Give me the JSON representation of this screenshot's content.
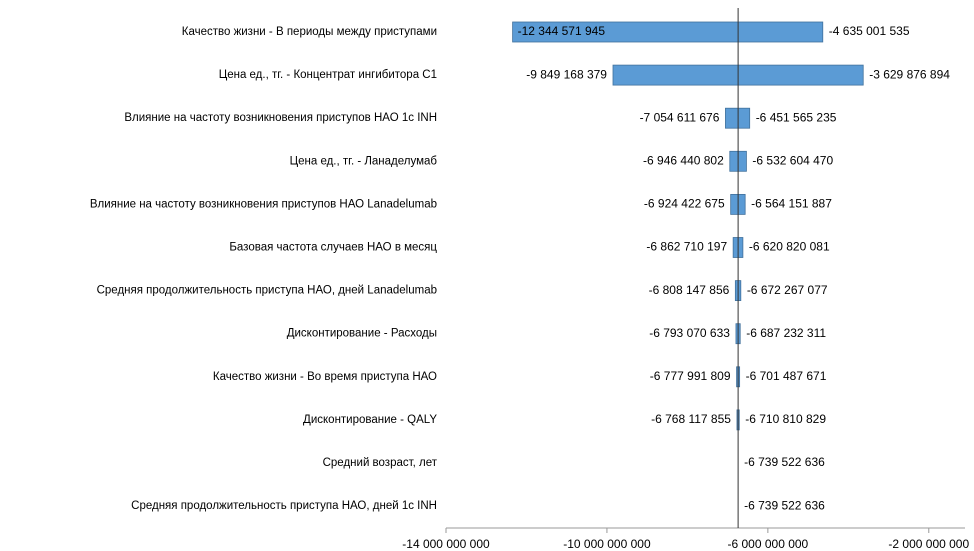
{
  "chart_data": {
    "type": "tornado",
    "categories": [
      "Качество жизни - В периоды между приступами",
      "Цена ед., тг. - Концентрат ингибитора С1",
      "Влияние на частоту возникновения приступов НАО 1с INH",
      "Цена ед., тг. - Ланаделумаб",
      "Влияние на частоту возникновения приступов НАО Lanadelumab",
      "Базовая частота случаев НАО в месяц",
      "Средняя продолжительность приступа НАО, дней Lanadelumab",
      "Дисконтирование - Расходы",
      "Качество жизни - Во время приступа НАО",
      "Дисконтирование - QALY",
      "Средний возраст, лет",
      "Средняя продолжительность приступа НАО, дней 1с INH"
    ],
    "series": [
      {
        "color": "#5b9bd5",
        "values": [
          -12344571945,
          -9849168379,
          -7054611676,
          -6946440802,
          -6924422675,
          -6862710197,
          -6808147856,
          -6793070633,
          -6777991809,
          -6768117855,
          null,
          null
        ],
        "value_labels": [
          "-12 344 571 945",
          "-9 849 168 379",
          "-7 054 611 676",
          "-6 946 440 802",
          "-6 924 422 675",
          "-6 862 710 197",
          "-6 808 147 856",
          "-6 793 070 633",
          "-6 777 991 809",
          "-6 768 117 855",
          null,
          null
        ]
      },
      {
        "color": "#5b9bd5",
        "values": [
          -4635001535,
          -3629876894,
          -6451565235,
          -6532604470,
          -6564151887,
          -6620820081,
          -6672267077,
          -6687232311,
          -6701487671,
          -6710810829,
          -6739522636,
          -6739522636
        ],
        "value_labels": [
          "-4 635 001 535",
          "-3 629 876 894",
          "-6 451 565 235",
          "-6 532 604 470",
          "-6 564 151 887",
          "-6 620 820 081",
          "-6 672 267 077",
          "-6 687 232 311",
          "-6 701 487 671",
          "-6 710 810 829",
          "-6 739 522 636",
          "-6 739 522 636"
        ]
      }
    ],
    "base": -6739522636,
    "xlim": [
      -14000000000,
      -1100000000
    ],
    "xticks": [
      {
        "value": -14000000000,
        "label": "-14 000 000 000"
      },
      {
        "value": -10000000000,
        "label": "-10 000 000 000"
      },
      {
        "value": -6000000000,
        "label": "-6 000 000 000"
      },
      {
        "value": -2000000000,
        "label": "-2 000 000 000"
      }
    ]
  }
}
